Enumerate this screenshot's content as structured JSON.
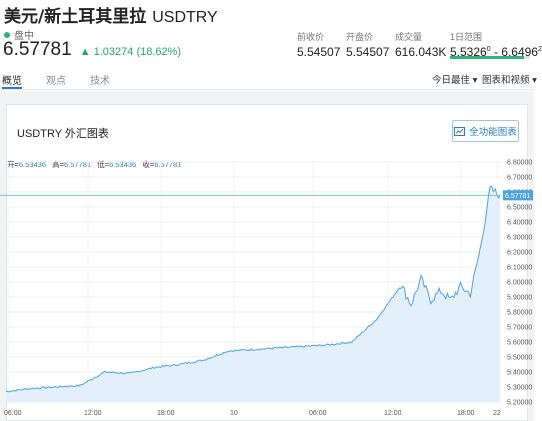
{
  "header": {
    "name": "美元/新土耳其里拉",
    "symbol": "USDTRY"
  },
  "market": {
    "status": "盘中",
    "status_color": "#2bb673"
  },
  "quote": {
    "price": "6.57781",
    "change": "▲ 1.03274 (18.62%)",
    "change_color": "#24a86a"
  },
  "stats": [
    {
      "label": "前收价",
      "value": "5.54507"
    },
    {
      "label": "开盘价",
      "value": "5.54507"
    },
    {
      "label": "成交量",
      "value": "616.043K"
    },
    {
      "label": "1日范围",
      "value_low": "5.5326",
      "value_low_sup": "0",
      "sep": " - ",
      "value_high": "6.6496",
      "value_high_sup": "2",
      "range_fill_pct": 93
    }
  ],
  "tabs": [
    {
      "label": "概览"
    },
    {
      "label": "观点"
    },
    {
      "label": "技术"
    }
  ],
  "dropdowns": {
    "period": "今日最佳 ▾",
    "view": "图表和视频 ▾"
  },
  "card": {
    "title": "USDTRY 外汇图表",
    "fullscreen_label": "全功能图表",
    "fullscreen_icon": "chart-icon"
  },
  "ohlc": {
    "open_label": "开=",
    "open": "6.53436",
    "high_label": "高=",
    "high": "6.57781",
    "low_label": "低=",
    "low": "6.53436",
    "close_label": "收=",
    "close": "6.57781"
  },
  "chart_data": {
    "type": "line",
    "title": "",
    "line_color": "#4da3e0",
    "fill_color": "#e3f0fb",
    "ylim": [
      5.2,
      6.85
    ],
    "y_ticks": [
      "6.80000",
      "6.70000",
      "6.60000",
      "6.50000",
      "6.40000",
      "6.30000",
      "6.20000",
      "6.10000",
      "6.00000",
      "5.90000",
      "5.80000",
      "5.70000",
      "5.60000",
      "5.50000",
      "5.40000",
      "5.30000",
      "5.20000"
    ],
    "x_ticks": [
      "06:00",
      "12:00",
      "18:00",
      "10",
      "06:00",
      "12:00",
      "18:00",
      "22"
    ],
    "current_price_label": "6.57781",
    "x": [
      0,
      5,
      10,
      15,
      20,
      25,
      30,
      35,
      40,
      45,
      50,
      55,
      60,
      65,
      70,
      75,
      80,
      82,
      84,
      86,
      88,
      90,
      92,
      94,
      96,
      98,
      100
    ],
    "y": [
      5.27,
      5.29,
      5.3,
      5.31,
      5.4,
      5.39,
      5.43,
      5.45,
      5.48,
      5.54,
      5.55,
      5.56,
      5.57,
      5.58,
      5.6,
      5.75,
      5.98,
      5.85,
      6.02,
      5.88,
      5.94,
      5.88,
      5.97,
      5.92,
      6.22,
      6.62,
      6.57781
    ]
  }
}
